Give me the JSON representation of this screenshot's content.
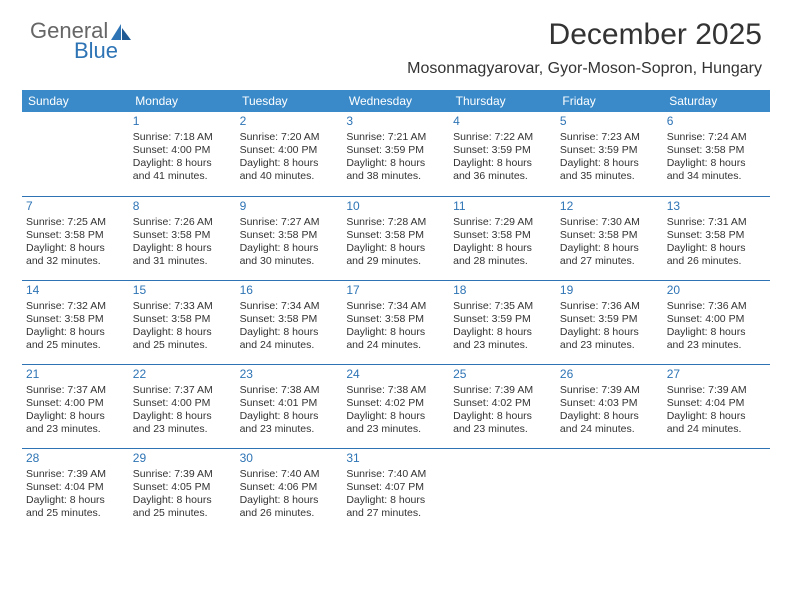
{
  "brand": {
    "name1": "General",
    "name2": "Blue"
  },
  "title": "December 2025",
  "subtitle": "Mosonmagyarovar, Gyor-Moson-Sopron, Hungary",
  "colors": {
    "header_bg": "#3a8ac9",
    "accent": "#2e74b5",
    "text": "#333333",
    "background": "#ffffff"
  },
  "weekdays": [
    "Sunday",
    "Monday",
    "Tuesday",
    "Wednesday",
    "Thursday",
    "Friday",
    "Saturday"
  ],
  "weeks": [
    [
      {
        "day": "",
        "sunrise": "",
        "sunset": "",
        "daylight": ""
      },
      {
        "day": "1",
        "sunrise": "Sunrise: 7:18 AM",
        "sunset": "Sunset: 4:00 PM",
        "daylight": "Daylight: 8 hours and 41 minutes."
      },
      {
        "day": "2",
        "sunrise": "Sunrise: 7:20 AM",
        "sunset": "Sunset: 4:00 PM",
        "daylight": "Daylight: 8 hours and 40 minutes."
      },
      {
        "day": "3",
        "sunrise": "Sunrise: 7:21 AM",
        "sunset": "Sunset: 3:59 PM",
        "daylight": "Daylight: 8 hours and 38 minutes."
      },
      {
        "day": "4",
        "sunrise": "Sunrise: 7:22 AM",
        "sunset": "Sunset: 3:59 PM",
        "daylight": "Daylight: 8 hours and 36 minutes."
      },
      {
        "day": "5",
        "sunrise": "Sunrise: 7:23 AM",
        "sunset": "Sunset: 3:59 PM",
        "daylight": "Daylight: 8 hours and 35 minutes."
      },
      {
        "day": "6",
        "sunrise": "Sunrise: 7:24 AM",
        "sunset": "Sunset: 3:58 PM",
        "daylight": "Daylight: 8 hours and 34 minutes."
      }
    ],
    [
      {
        "day": "7",
        "sunrise": "Sunrise: 7:25 AM",
        "sunset": "Sunset: 3:58 PM",
        "daylight": "Daylight: 8 hours and 32 minutes."
      },
      {
        "day": "8",
        "sunrise": "Sunrise: 7:26 AM",
        "sunset": "Sunset: 3:58 PM",
        "daylight": "Daylight: 8 hours and 31 minutes."
      },
      {
        "day": "9",
        "sunrise": "Sunrise: 7:27 AM",
        "sunset": "Sunset: 3:58 PM",
        "daylight": "Daylight: 8 hours and 30 minutes."
      },
      {
        "day": "10",
        "sunrise": "Sunrise: 7:28 AM",
        "sunset": "Sunset: 3:58 PM",
        "daylight": "Daylight: 8 hours and 29 minutes."
      },
      {
        "day": "11",
        "sunrise": "Sunrise: 7:29 AM",
        "sunset": "Sunset: 3:58 PM",
        "daylight": "Daylight: 8 hours and 28 minutes."
      },
      {
        "day": "12",
        "sunrise": "Sunrise: 7:30 AM",
        "sunset": "Sunset: 3:58 PM",
        "daylight": "Daylight: 8 hours and 27 minutes."
      },
      {
        "day": "13",
        "sunrise": "Sunrise: 7:31 AM",
        "sunset": "Sunset: 3:58 PM",
        "daylight": "Daylight: 8 hours and 26 minutes."
      }
    ],
    [
      {
        "day": "14",
        "sunrise": "Sunrise: 7:32 AM",
        "sunset": "Sunset: 3:58 PM",
        "daylight": "Daylight: 8 hours and 25 minutes."
      },
      {
        "day": "15",
        "sunrise": "Sunrise: 7:33 AM",
        "sunset": "Sunset: 3:58 PM",
        "daylight": "Daylight: 8 hours and 25 minutes."
      },
      {
        "day": "16",
        "sunrise": "Sunrise: 7:34 AM",
        "sunset": "Sunset: 3:58 PM",
        "daylight": "Daylight: 8 hours and 24 minutes."
      },
      {
        "day": "17",
        "sunrise": "Sunrise: 7:34 AM",
        "sunset": "Sunset: 3:58 PM",
        "daylight": "Daylight: 8 hours and 24 minutes."
      },
      {
        "day": "18",
        "sunrise": "Sunrise: 7:35 AM",
        "sunset": "Sunset: 3:59 PM",
        "daylight": "Daylight: 8 hours and 23 minutes."
      },
      {
        "day": "19",
        "sunrise": "Sunrise: 7:36 AM",
        "sunset": "Sunset: 3:59 PM",
        "daylight": "Daylight: 8 hours and 23 minutes."
      },
      {
        "day": "20",
        "sunrise": "Sunrise: 7:36 AM",
        "sunset": "Sunset: 4:00 PM",
        "daylight": "Daylight: 8 hours and 23 minutes."
      }
    ],
    [
      {
        "day": "21",
        "sunrise": "Sunrise: 7:37 AM",
        "sunset": "Sunset: 4:00 PM",
        "daylight": "Daylight: 8 hours and 23 minutes."
      },
      {
        "day": "22",
        "sunrise": "Sunrise: 7:37 AM",
        "sunset": "Sunset: 4:00 PM",
        "daylight": "Daylight: 8 hours and 23 minutes."
      },
      {
        "day": "23",
        "sunrise": "Sunrise: 7:38 AM",
        "sunset": "Sunset: 4:01 PM",
        "daylight": "Daylight: 8 hours and 23 minutes."
      },
      {
        "day": "24",
        "sunrise": "Sunrise: 7:38 AM",
        "sunset": "Sunset: 4:02 PM",
        "daylight": "Daylight: 8 hours and 23 minutes."
      },
      {
        "day": "25",
        "sunrise": "Sunrise: 7:39 AM",
        "sunset": "Sunset: 4:02 PM",
        "daylight": "Daylight: 8 hours and 23 minutes."
      },
      {
        "day": "26",
        "sunrise": "Sunrise: 7:39 AM",
        "sunset": "Sunset: 4:03 PM",
        "daylight": "Daylight: 8 hours and 24 minutes."
      },
      {
        "day": "27",
        "sunrise": "Sunrise: 7:39 AM",
        "sunset": "Sunset: 4:04 PM",
        "daylight": "Daylight: 8 hours and 24 minutes."
      }
    ],
    [
      {
        "day": "28",
        "sunrise": "Sunrise: 7:39 AM",
        "sunset": "Sunset: 4:04 PM",
        "daylight": "Daylight: 8 hours and 25 minutes."
      },
      {
        "day": "29",
        "sunrise": "Sunrise: 7:39 AM",
        "sunset": "Sunset: 4:05 PM",
        "daylight": "Daylight: 8 hours and 25 minutes."
      },
      {
        "day": "30",
        "sunrise": "Sunrise: 7:40 AM",
        "sunset": "Sunset: 4:06 PM",
        "daylight": "Daylight: 8 hours and 26 minutes."
      },
      {
        "day": "31",
        "sunrise": "Sunrise: 7:40 AM",
        "sunset": "Sunset: 4:07 PM",
        "daylight": "Daylight: 8 hours and 27 minutes."
      },
      {
        "day": "",
        "sunrise": "",
        "sunset": "",
        "daylight": ""
      },
      {
        "day": "",
        "sunrise": "",
        "sunset": "",
        "daylight": ""
      },
      {
        "day": "",
        "sunrise": "",
        "sunset": "",
        "daylight": ""
      }
    ]
  ]
}
